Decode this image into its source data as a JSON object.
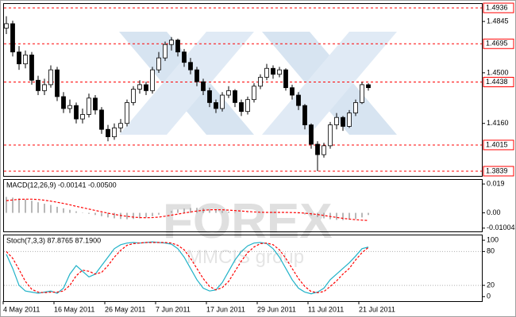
{
  "watermark": {
    "brand": "FOREX",
    "group": "MMCIS group"
  },
  "chart_data": [
    {
      "type": "candlestick",
      "categories": [
        "4 May 2011",
        null,
        null,
        null,
        null,
        null,
        null,
        null,
        "16 May 2011",
        null,
        null,
        null,
        null,
        null,
        null,
        null,
        "26 May 2011",
        null,
        null,
        null,
        null,
        null,
        null,
        null,
        "7 Jun 2011",
        null,
        null,
        null,
        null,
        null,
        null,
        null,
        "17 Jun 2011",
        null,
        null,
        null,
        null,
        null,
        null,
        null,
        "29 Jun 2011",
        null,
        null,
        null,
        null,
        null,
        null,
        null,
        "11 Jul 2011",
        null,
        null,
        null,
        null,
        null,
        null,
        null,
        "21 Jul 2011",
        null
      ],
      "open": [
        1.48,
        1.483,
        1.464,
        1.456,
        1.462,
        1.445,
        1.438,
        1.442,
        1.452,
        1.434,
        1.426,
        1.428,
        1.419,
        1.422,
        1.433,
        1.425,
        1.412,
        1.407,
        1.413,
        1.416,
        1.43,
        1.439,
        1.442,
        1.438,
        1.452,
        1.46,
        1.469,
        1.472,
        1.464,
        1.457,
        1.452,
        1.444,
        1.438,
        1.43,
        1.426,
        1.435,
        1.438,
        1.43,
        1.424,
        1.432,
        1.441,
        1.447,
        1.453,
        1.449,
        1.452,
        1.44,
        1.435,
        1.428,
        1.415,
        1.402,
        1.395,
        1.401,
        1.415,
        1.42,
        1.414,
        1.423,
        1.43,
        1.442
      ],
      "high": [
        1.488,
        1.485,
        1.468,
        1.465,
        1.464,
        1.448,
        1.446,
        1.455,
        1.454,
        1.437,
        1.432,
        1.43,
        1.426,
        1.436,
        1.435,
        1.427,
        1.415,
        1.416,
        1.419,
        1.432,
        1.441,
        1.445,
        1.444,
        1.454,
        1.464,
        1.471,
        1.474,
        1.473,
        1.466,
        1.46,
        1.454,
        1.446,
        1.44,
        1.432,
        1.437,
        1.441,
        1.439,
        1.432,
        1.434,
        1.443,
        1.449,
        1.456,
        1.455,
        1.454,
        1.453,
        1.442,
        1.437,
        1.429,
        1.416,
        1.404,
        1.403,
        1.417,
        1.423,
        1.421,
        1.425,
        1.432,
        1.4438,
        1.443
      ],
      "low": [
        1.476,
        1.461,
        1.452,
        1.453,
        1.442,
        1.435,
        1.435,
        1.44,
        1.431,
        1.423,
        1.423,
        1.416,
        1.416,
        1.42,
        1.422,
        1.409,
        1.404,
        1.405,
        1.41,
        1.414,
        1.428,
        1.436,
        1.435,
        1.436,
        1.45,
        1.458,
        1.465,
        1.461,
        1.454,
        1.449,
        1.441,
        1.435,
        1.427,
        1.423,
        1.424,
        1.433,
        1.427,
        1.421,
        1.422,
        1.43,
        1.439,
        1.445,
        1.446,
        1.447,
        1.438,
        1.432,
        1.425,
        1.412,
        1.399,
        1.3839,
        1.393,
        1.399,
        1.412,
        1.411,
        1.413,
        1.421,
        1.429,
        1.438
      ],
      "close": [
        1.483,
        1.464,
        1.456,
        1.462,
        1.445,
        1.438,
        1.442,
        1.452,
        1.434,
        1.426,
        1.428,
        1.419,
        1.422,
        1.433,
        1.425,
        1.412,
        1.407,
        1.413,
        1.416,
        1.43,
        1.439,
        1.442,
        1.438,
        1.452,
        1.46,
        1.469,
        1.472,
        1.464,
        1.457,
        1.452,
        1.444,
        1.438,
        1.43,
        1.426,
        1.435,
        1.438,
        1.43,
        1.424,
        1.432,
        1.441,
        1.447,
        1.453,
        1.449,
        1.452,
        1.44,
        1.435,
        1.428,
        1.415,
        1.402,
        1.395,
        1.401,
        1.415,
        1.42,
        1.414,
        1.423,
        1.43,
        1.442,
        1.44
      ],
      "up_color": "#ffffff",
      "down_color": "#000000",
      "ylim": [
        1.3807,
        1.4968
      ],
      "yticks": [
        1.4845,
        {
          "value": 1.45,
          "label": "1.4500"
        },
        {
          "value": 1.416,
          "label": "1.4160"
        }
      ],
      "levels": [
        1.4936,
        1.4695,
        1.4438,
        1.4015,
        1.3839
      ],
      "level_color": "#ff0000"
    },
    {
      "type": "macd",
      "title": "MACD(12,26,9) -0.00141 -0.00500",
      "values": [
        0.0105,
        0.01,
        0.0095,
        0.0088,
        0.008,
        0.007,
        0.006,
        0.0052,
        0.004,
        0.003,
        0.002,
        0.001,
        0.0002,
        -0.0006,
        -0.0014,
        -0.0022,
        -0.003,
        -0.0036,
        -0.004,
        -0.0042,
        -0.004,
        -0.0036,
        -0.003,
        -0.0022,
        -0.0012,
        0,
        0.0012,
        0.0022,
        0.0028,
        0.0032,
        0.0033,
        0.003,
        0.0025,
        0.0018,
        0.0012,
        0.0008,
        0.0004,
        0,
        -0.0002,
        0,
        0.0002,
        0.0004,
        0.0005,
        0.0004,
        0.0002,
        0,
        -0.0004,
        -0.001,
        -0.0018,
        -0.0028,
        -0.0036,
        -0.0042,
        -0.0046,
        -0.0048,
        -0.0045,
        -0.004,
        -0.003,
        -0.00141
      ],
      "color": "#a0a0a0",
      "signal": [
        0.008,
        0.0085,
        0.0089,
        0.009,
        0.009,
        0.0088,
        0.0083,
        0.0077,
        0.007,
        0.0062,
        0.0053,
        0.0043,
        0.0034,
        0.0025,
        0.0016,
        0.0007,
        -0.0002,
        -0.001,
        -0.0017,
        -0.0023,
        -0.0028,
        -0.0031,
        -0.0032,
        -0.0031,
        -0.0028,
        -0.0022,
        -0.0015,
        -0.0008,
        -0.0001,
        0.0006,
        0.0012,
        0.0017,
        0.002,
        0.0021,
        0.002,
        0.0018,
        0.0015,
        0.0012,
        0.0009,
        0.0006,
        0.0004,
        0.0003,
        0.0003,
        0.0003,
        0.0003,
        0.0002,
        0.0001,
        -0.0002,
        -0.0006,
        -0.0011,
        -0.0017,
        -0.0024,
        -0.003,
        -0.0036,
        -0.0041,
        -0.0045,
        -0.0048,
        -0.005
      ],
      "signal_color": "#ff0000",
      "ylim": [
        -0.0122,
        0.0222
      ],
      "yticks": [
        0.019,
        {
          "value": 0,
          "label": "0.00"
        },
        -0.01004
      ]
    },
    {
      "type": "stoch",
      "title": "Stoch(7,3,3) 87.8765 87.1900",
      "series": [
        {
          "color": "#20b2c8",
          "dash": false,
          "values": [
            75,
            50,
            20,
            10,
            8,
            6,
            8,
            10,
            6,
            15,
            40,
            55,
            45,
            35,
            40,
            55,
            70,
            85,
            92,
            95,
            96,
            95,
            96,
            97,
            96,
            95,
            93,
            85,
            70,
            50,
            30,
            15,
            10,
            12,
            25,
            45,
            65,
            80,
            90,
            95,
            96,
            94,
            85,
            70,
            50,
            30,
            15,
            8,
            5,
            8,
            15,
            30,
            40,
            50,
            60,
            72,
            85,
            87.8765
          ]
        },
        {
          "color": "#ff0000",
          "dash": true,
          "values": [
            80,
            68,
            48,
            27,
            13,
            8,
            7,
            8,
            8,
            10,
            20,
            37,
            47,
            45,
            40,
            43,
            55,
            70,
            82,
            91,
            94,
            95,
            96,
            96,
            96,
            96,
            95,
            91,
            83,
            68,
            50,
            32,
            18,
            12,
            16,
            27,
            45,
            63,
            78,
            88,
            94,
            95,
            92,
            83,
            68,
            50,
            32,
            18,
            9,
            7,
            9,
            18,
            28,
            40,
            50,
            65,
            78,
            87.19
          ]
        }
      ],
      "ylim": [
        -8,
        110
      ],
      "yticks": [
        100,
        80,
        20,
        0
      ],
      "levels": [
        80,
        20
      ],
      "level_color": "#b0b0b0"
    }
  ]
}
